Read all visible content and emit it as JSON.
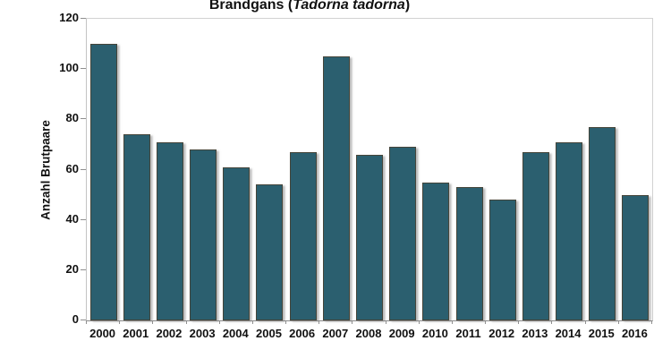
{
  "chart_data": {
    "type": "bar",
    "title": {
      "prefix": "Brandgans (",
      "species": "Tadorna tadorna",
      "suffix": ")"
    },
    "ylabel": "Anzahl Brutpaare",
    "xlabel": "",
    "categories": [
      "2000",
      "2001",
      "2002",
      "2003",
      "2004",
      "2005",
      "2006",
      "2007",
      "2008",
      "2009",
      "2010",
      "2011",
      "2012",
      "2013",
      "2014",
      "2015",
      "2016"
    ],
    "values": [
      110,
      74,
      71,
      68,
      61,
      54,
      67,
      105,
      66,
      69,
      55,
      53,
      48,
      67,
      71,
      77,
      50
    ],
    "ylim": [
      0,
      120
    ],
    "yticks": [
      0,
      20,
      40,
      60,
      80,
      100,
      120
    ],
    "grid": false,
    "legend_position": "none",
    "colors": {
      "bar_fill": "#2b5f6f",
      "bar_border": "#45453a",
      "axis_line": "#c4c4c4",
      "tick_mark": "#8f8f8f",
      "text": "#111111",
      "background": "#ffffff"
    }
  }
}
